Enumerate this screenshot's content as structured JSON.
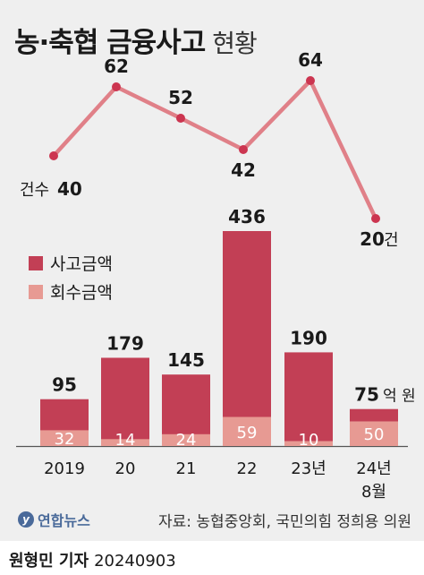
{
  "title": "농·축협 금융사고",
  "title_sub": "현황",
  "legend": {
    "loss_label": "사고금액",
    "recovered_label": "회수금액"
  },
  "colors": {
    "loss": "#c23f55",
    "recovered": "#e79a93",
    "line": "#e08088",
    "dot": "#cc3550",
    "panel": "#efefef"
  },
  "chart_data": {
    "type": "bar+line",
    "categories": [
      "2019",
      "20",
      "21",
      "22",
      "23년",
      "24년 8월"
    ],
    "bar_series": [
      {
        "name": "사고금액",
        "values": [
          95,
          179,
          145,
          436,
          190,
          75
        ]
      },
      {
        "name": "회수금액",
        "values": [
          32,
          14,
          24,
          59,
          10,
          50
        ]
      }
    ],
    "bar_labels": [
      "95",
      "179",
      "145",
      "436",
      "190",
      "75"
    ],
    "bar_unit_label": "억 원",
    "recovered_labels": [
      "32",
      "14",
      "24",
      "59",
      "10",
      "50"
    ],
    "line_series": {
      "name": "건수",
      "values": [
        40,
        62,
        52,
        42,
        64,
        20
      ]
    },
    "line_labels": [
      "40",
      "62",
      "52",
      "42",
      "64",
      "20"
    ],
    "line_first_prefix": "건수",
    "line_last_suffix": "건"
  },
  "source": "자료: 농협중앙회, 국민의힘 정희용 의원",
  "logo_text": "연합뉴스",
  "credit": {
    "name": "원형민 기자",
    "date": "20240903"
  }
}
